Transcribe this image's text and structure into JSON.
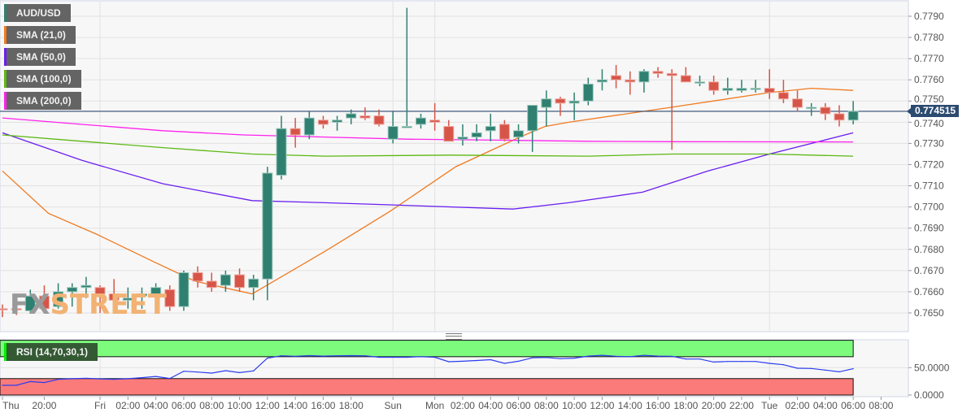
{
  "legend": {
    "symbol": {
      "label": "AUD/USD",
      "color": "#2f8070"
    },
    "sma21": {
      "label": "SMA (21,0)",
      "color": "#f07a20"
    },
    "sma50": {
      "label": "SMA (50,0)",
      "color": "#6a1ef0"
    },
    "sma100": {
      "label": "SMA (100,0)",
      "color": "#5cb813"
    },
    "sma200": {
      "label": "SMA (200,0)",
      "color": "#ff22ee"
    },
    "rsi": {
      "label": "RSI (14,70,30,1)",
      "color": "#00ee00"
    }
  },
  "current_price": "0.774515",
  "watermark": {
    "fx": "FX",
    "street": "STREET"
  },
  "colors": {
    "up": "#2f8070",
    "down": "#d65548",
    "price_line": "#2c4a70",
    "rsi_line": "#2b3cf0",
    "overbought_band": "#7dfb7d",
    "oversold_band": "#fb7b7b"
  },
  "chart_data": [
    {
      "type": "candlestick",
      "title": "",
      "ylim": [
        0.764,
        0.7797
      ],
      "y_ticks": [
        "0.7790",
        "0.7780",
        "0.7770",
        "0.7760",
        "0.7750",
        "0.7740",
        "0.7730",
        "0.7720",
        "0.7710",
        "0.7700",
        "0.7690",
        "0.7680",
        "0.7670",
        "0.7660",
        "0.7650"
      ],
      "x_ticks": [
        {
          "i": 0,
          "label": "Thu"
        },
        {
          "i": 3,
          "label": "20:00"
        },
        {
          "i": 7,
          "label": "Fri"
        },
        {
          "i": 9,
          "label": "02:00"
        },
        {
          "i": 11,
          "label": "04:00"
        },
        {
          "i": 13,
          "label": "06:00"
        },
        {
          "i": 15,
          "label": "08:00"
        },
        {
          "i": 17,
          "label": "10:00"
        },
        {
          "i": 19,
          "label": "12:00"
        },
        {
          "i": 21,
          "label": "14:00"
        },
        {
          "i": 23,
          "label": "16:00"
        },
        {
          "i": 25,
          "label": "18:00"
        },
        {
          "i": 28,
          "label": "Sun"
        },
        {
          "i": 31,
          "label": "Mon"
        },
        {
          "i": 33,
          "label": "02:00"
        },
        {
          "i": 35,
          "label": "04:00"
        },
        {
          "i": 37,
          "label": "06:00"
        },
        {
          "i": 39,
          "label": "08:00"
        },
        {
          "i": 41,
          "label": "10:00"
        },
        {
          "i": 43,
          "label": "12:00"
        },
        {
          "i": 45,
          "label": "14:00"
        },
        {
          "i": 47,
          "label": "16:00"
        },
        {
          "i": 49,
          "label": "18:00"
        },
        {
          "i": 51,
          "label": "20:00"
        },
        {
          "i": 53,
          "label": "22:00"
        },
        {
          "i": 55,
          "label": "Tue"
        },
        {
          "i": 57,
          "label": "02:00"
        },
        {
          "i": 59,
          "label": "04:00"
        },
        {
          "i": 61,
          "label": "06:00"
        },
        {
          "i": 63,
          "label": "08:00"
        }
      ],
      "ohlc": [
        [
          0.7652,
          0.7654,
          0.7648,
          0.76518
        ],
        [
          0.7652,
          0.7654,
          0.7649,
          0.76518
        ],
        [
          0.7651,
          0.7661,
          0.765,
          0.7658
        ],
        [
          0.7658,
          0.7663,
          0.765,
          0.7652
        ],
        [
          0.7653,
          0.7664,
          0.7652,
          0.766
        ],
        [
          0.766,
          0.7664,
          0.7653,
          0.7662
        ],
        [
          0.7662,
          0.7667,
          0.7657,
          0.7663
        ],
        [
          0.7662,
          0.7663,
          0.765,
          0.7659
        ],
        [
          0.7659,
          0.7666,
          0.7654,
          0.7656
        ],
        [
          0.7656,
          0.7662,
          0.7652,
          0.7657
        ],
        [
          0.7658,
          0.7662,
          0.7652,
          0.7659
        ],
        [
          0.7659,
          0.7664,
          0.7655,
          0.7662
        ],
        [
          0.7661,
          0.7663,
          0.7651,
          0.7653
        ],
        [
          0.7653,
          0.767,
          0.7651,
          0.7669
        ],
        [
          0.7669,
          0.7672,
          0.7662,
          0.7665
        ],
        [
          0.7665,
          0.7669,
          0.766,
          0.7662
        ],
        [
          0.7663,
          0.767,
          0.766,
          0.7668
        ],
        [
          0.7668,
          0.7671,
          0.766,
          0.7662
        ],
        [
          0.7662,
          0.7668,
          0.7656,
          0.7666
        ],
        [
          0.7666,
          0.7719,
          0.7656,
          0.7716
        ],
        [
          0.7715,
          0.7743,
          0.7713,
          0.7737
        ],
        [
          0.7737,
          0.7742,
          0.7728,
          0.7734
        ],
        [
          0.7734,
          0.7745,
          0.7732,
          0.7742
        ],
        [
          0.7741,
          0.7743,
          0.7737,
          0.7739
        ],
        [
          0.774,
          0.7743,
          0.7736,
          0.7741
        ],
        [
          0.7742,
          0.7746,
          0.7739,
          0.7744
        ],
        [
          0.7743,
          0.7747,
          0.7741,
          0.7742
        ],
        [
          0.7743,
          0.7746,
          0.7738,
          0.7739
        ],
        [
          0.7732,
          0.7745,
          0.773,
          0.7738
        ],
        [
          0.7738,
          0.7794,
          0.7738,
          0.7738
        ],
        [
          0.7739,
          0.7744,
          0.7737,
          0.7742
        ],
        [
          0.7741,
          0.7749,
          0.7736,
          0.774
        ],
        [
          0.7738,
          0.7741,
          0.7731,
          0.7731
        ],
        [
          0.7732,
          0.7739,
          0.7729,
          0.7733
        ],
        [
          0.7733,
          0.7739,
          0.7731,
          0.7735
        ],
        [
          0.7736,
          0.7744,
          0.7731,
          0.7738
        ],
        [
          0.7739,
          0.7741,
          0.7731,
          0.7732
        ],
        [
          0.7733,
          0.7739,
          0.773,
          0.7736
        ],
        [
          0.7736,
          0.7748,
          0.7726,
          0.7748
        ],
        [
          0.7747,
          0.7755,
          0.7738,
          0.7751
        ],
        [
          0.7751,
          0.7752,
          0.7743,
          0.7749
        ],
        [
          0.7749,
          0.7754,
          0.7741,
          0.775
        ],
        [
          0.775,
          0.7761,
          0.7748,
          0.7758
        ],
        [
          0.7759,
          0.7765,
          0.7755,
          0.776
        ],
        [
          0.7762,
          0.7767,
          0.7756,
          0.776
        ],
        [
          0.776,
          0.7764,
          0.7753,
          0.7759
        ],
        [
          0.7759,
          0.7765,
          0.7754,
          0.7764
        ],
        [
          0.7764,
          0.7766,
          0.7761,
          0.7763
        ],
        [
          0.7763,
          0.7765,
          0.7727,
          0.7762
        ],
        [
          0.7762,
          0.7766,
          0.7759,
          0.7759
        ],
        [
          0.7759,
          0.7762,
          0.7757,
          0.7759
        ],
        [
          0.7759,
          0.7762,
          0.7753,
          0.7755
        ],
        [
          0.7755,
          0.7761,
          0.7753,
          0.7756
        ],
        [
          0.7755,
          0.776,
          0.7754,
          0.7756
        ],
        [
          0.7756,
          0.776,
          0.7754,
          0.7756
        ],
        [
          0.7756,
          0.7765,
          0.7751,
          0.7754
        ],
        [
          0.7754,
          0.776,
          0.7749,
          0.7751
        ],
        [
          0.7751,
          0.7755,
          0.7745,
          0.7747
        ],
        [
          0.7747,
          0.7749,
          0.7743,
          0.7747
        ],
        [
          0.7747,
          0.7749,
          0.7741,
          0.7744
        ],
        [
          0.7744,
          0.7748,
          0.7738,
          0.7741
        ],
        [
          0.7741,
          0.775,
          0.7739,
          0.774515
        ]
      ],
      "series": [
        {
          "name": "SMA (21,0)",
          "color": "#f07a20",
          "points": [
            [
              0,
              0.7717
            ],
            [
              3.3,
              0.7697
            ],
            [
              6.8,
              0.7687
            ],
            [
              10.9,
              0.7674
            ],
            [
              13.8,
              0.7665
            ],
            [
              17.9,
              0.7659
            ],
            [
              23.1,
              0.7679
            ],
            [
              27.8,
              0.7698
            ],
            [
              32.5,
              0.7719
            ],
            [
              37.1,
              0.7733
            ],
            [
              38.9,
              0.7738
            ],
            [
              40.6,
              0.774
            ],
            [
              47.9,
              0.7747
            ],
            [
              55,
              0.7754
            ],
            [
              58,
              0.7756
            ],
            [
              61,
              0.7755
            ]
          ]
        },
        {
          "name": "SMA (50,0)",
          "color": "#6a1ef0",
          "points": [
            [
              0,
              0.7735
            ],
            [
              5.7,
              0.7722
            ],
            [
              11.5,
              0.7711
            ],
            [
              17.9,
              0.7703
            ],
            [
              23.1,
              0.7702
            ],
            [
              27.8,
              0.7701
            ],
            [
              36.6,
              0.7699
            ],
            [
              40.6,
              0.7702
            ],
            [
              45.9,
              0.7707
            ],
            [
              50.6,
              0.7717
            ],
            [
              55,
              0.7725
            ],
            [
              61,
              0.7735
            ]
          ]
        },
        {
          "name": "SMA (100,0)",
          "color": "#5cb813",
          "points": [
            [
              0,
              0.7734
            ],
            [
              5.7,
              0.7731
            ],
            [
              11.5,
              0.7728
            ],
            [
              17.9,
              0.7725
            ],
            [
              23.1,
              0.7724
            ],
            [
              32,
              0.77245
            ],
            [
              42,
              0.7724
            ],
            [
              48,
              0.7725
            ],
            [
              55,
              0.7725
            ],
            [
              61,
              0.7724
            ]
          ]
        },
        {
          "name": "SMA (200,0)",
          "color": "#ff22ee",
          "points": [
            [
              0,
              0.7742
            ],
            [
              5.7,
              0.7739
            ],
            [
              11.5,
              0.7736
            ],
            [
              17.3,
              0.7734
            ],
            [
              23.1,
              0.7733
            ],
            [
              29,
              0.7732
            ],
            [
              36,
              0.77315
            ],
            [
              42,
              0.7731
            ],
            [
              48,
              0.77308
            ],
            [
              61,
              0.77307
            ]
          ]
        }
      ]
    },
    {
      "type": "line",
      "name": "RSI (14,70,30,1)",
      "ylim": [
        0,
        100
      ],
      "bands": {
        "overbought": [
          70,
          100
        ],
        "oversold": [
          0,
          30
        ]
      },
      "y_ticks": [
        "50.0000",
        "0.0000"
      ],
      "values": [
        17.8,
        17.8,
        24.7,
        22.8,
        28.7,
        29.8,
        30.7,
        29.5,
        28.7,
        29.8,
        31.7,
        34,
        30.2,
        43.5,
        42,
        40,
        44.5,
        41,
        44,
        67.3,
        71.7,
        70.7,
        72,
        71,
        71.7,
        72,
        71.7,
        69,
        69,
        69,
        70,
        69,
        60.8,
        61.7,
        63,
        64.5,
        57.8,
        61.7,
        68,
        68.5,
        66.5,
        67.3,
        71,
        72.5,
        70.7,
        70,
        72.5,
        71,
        70.7,
        65.8,
        65.8,
        60.3,
        61.3,
        61.3,
        61.3,
        57.8,
        55.4,
        49,
        48.5,
        45.5,
        42.5,
        48
      ]
    }
  ]
}
